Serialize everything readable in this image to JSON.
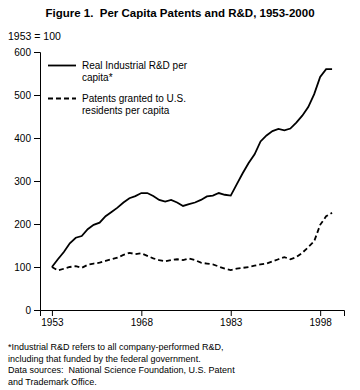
{
  "chart_data": {
    "type": "line",
    "title": "Figure 1.  Per Capita Patents and R&D, 1953-2000",
    "ylabel": "1953 = 100",
    "annotations": [
      "*Industrial R&D refers to all company-performed R&D,",
      "including that funded by the federal government.",
      "Data sources:  National Science Foundation, U.S. Patent",
      "and Trademark Office."
    ],
    "x": [
      1953,
      1954,
      1955,
      1956,
      1957,
      1958,
      1959,
      1960,
      1961,
      1962,
      1963,
      1964,
      1965,
      1966,
      1967,
      1968,
      1969,
      1970,
      1971,
      1972,
      1973,
      1974,
      1975,
      1976,
      1977,
      1978,
      1979,
      1980,
      1981,
      1982,
      1983,
      1984,
      1985,
      1986,
      1987,
      1988,
      1989,
      1990,
      1991,
      1992,
      1993,
      1994,
      1995,
      1996,
      1997,
      1998,
      1999,
      2000
    ],
    "series": [
      {
        "name": "Real Industrial R&D per\ncapita*",
        "color": "#000000",
        "line_style": "solid",
        "values": [
          100,
          118,
          135,
          155,
          168,
          172,
          188,
          198,
          203,
          218,
          228,
          238,
          250,
          260,
          265,
          272,
          272,
          265,
          256,
          252,
          256,
          250,
          242,
          246,
          250,
          256,
          264,
          266,
          272,
          268,
          266,
          292,
          318,
          342,
          362,
          392,
          406,
          416,
          421,
          418,
          422,
          436,
          452,
          472,
          502,
          542,
          560,
          560
        ]
      },
      {
        "name": "Patents granted to U.S.\nresidents per capita",
        "color": "#000000",
        "line_style": "dashed",
        "values": [
          100,
          92,
          96,
          100,
          102,
          98,
          105,
          108,
          110,
          114,
          118,
          122,
          128,
          133,
          130,
          132,
          126,
          120,
          116,
          113,
          116,
          118,
          116,
          120,
          116,
          110,
          108,
          106,
          101,
          96,
          93,
          96,
          98,
          100,
          103,
          106,
          108,
          113,
          118,
          123,
          118,
          123,
          133,
          146,
          160,
          198,
          218,
          226
        ]
      }
    ],
    "xlim": [
      1951,
      2002
    ],
    "xticks": [
      1953,
      1968,
      1983,
      1998
    ],
    "ylim": [
      0,
      600
    ],
    "yticks": [
      0,
      100,
      200,
      300,
      400,
      500,
      600
    ],
    "legend": "upper left",
    "grid": false
  }
}
